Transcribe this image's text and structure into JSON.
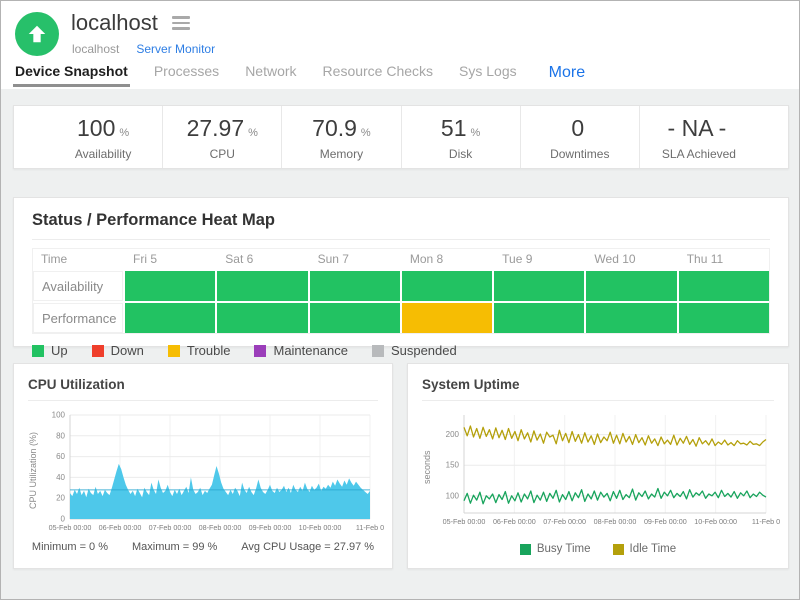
{
  "header": {
    "title": "localhost",
    "breadcrumb": {
      "name": "localhost",
      "type": "Server Monitor"
    }
  },
  "tabs": {
    "items": [
      {
        "label": "Device Snapshot",
        "active": true
      },
      {
        "label": "Processes",
        "active": false
      },
      {
        "label": "Network",
        "active": false
      },
      {
        "label": "Resource Checks",
        "active": false
      },
      {
        "label": "Sys Logs",
        "active": false
      }
    ],
    "more_label": "More"
  },
  "stats": {
    "items": [
      {
        "value": "100",
        "unit": "%",
        "label": "Availability"
      },
      {
        "value": "27.97",
        "unit": "%",
        "label": "CPU"
      },
      {
        "value": "70.9",
        "unit": "%",
        "label": "Memory"
      },
      {
        "value": "51",
        "unit": "%",
        "label": "Disk"
      },
      {
        "value": "0",
        "unit": "",
        "label": "Downtimes"
      },
      {
        "value": "- NA -",
        "unit": "",
        "label": "SLA Achieved"
      }
    ]
  },
  "heatmap": {
    "title": "Status / Performance Heat Map",
    "time_header": "Time",
    "columns": [
      "Fri 5",
      "Sat 6",
      "Sun 7",
      "Mon 8",
      "Tue 9",
      "Wed 10",
      "Thu 11"
    ],
    "rows": [
      {
        "label": "Availability",
        "cells": [
          "up",
          "up",
          "up",
          "up",
          "up",
          "up",
          "up"
        ]
      },
      {
        "label": "Performance",
        "cells": [
          "up",
          "up",
          "up",
          "trouble",
          "up",
          "up",
          "up"
        ]
      }
    ],
    "legend": [
      {
        "label": "Up",
        "key": "up"
      },
      {
        "label": "Down",
        "key": "down"
      },
      {
        "label": "Trouble",
        "key": "trouble"
      },
      {
        "label": "Maintenance",
        "key": "maintenance"
      },
      {
        "label": "Suspended",
        "key": "suspended"
      }
    ],
    "colors": {
      "up": "#22c262",
      "down": "#ef3e2b",
      "trouble": "#f6bd03",
      "maintenance": "#9b3eba",
      "suspended": "#b8babc"
    }
  },
  "chart_data": [
    {
      "id": "cpu",
      "type": "area",
      "title": "CPU Utilization",
      "ylabel": "CPU Utilization (%)",
      "ylim": [
        0,
        100
      ],
      "yticks": [
        0,
        20,
        40,
        60,
        80,
        100
      ],
      "x_labels": [
        "05-Feb 00:00",
        "06-Feb 00:00",
        "07-Feb 00:00",
        "08-Feb 00:00",
        "09-Feb 00:00",
        "10-Feb 00:00",
        "11-Feb 0"
      ],
      "color": "#4ec8ea",
      "avg_line": 27.97,
      "avg_color": "#2ba7cf",
      "grid": true,
      "values": [
        25,
        22,
        28,
        24,
        30,
        23,
        27,
        21,
        29,
        25,
        23,
        31,
        24,
        27,
        22,
        28,
        25,
        23,
        30,
        38,
        46,
        53,
        48,
        40,
        33,
        28,
        24,
        27,
        22,
        29,
        25,
        21,
        30,
        26,
        23,
        35,
        28,
        24,
        38,
        30,
        25,
        27,
        33,
        26,
        22,
        28,
        24,
        29,
        23,
        27,
        31,
        25,
        40,
        28,
        24,
        26,
        30,
        23,
        27,
        25,
        29,
        33,
        42,
        51,
        44,
        35,
        29,
        26,
        23,
        28,
        24,
        30,
        27,
        22,
        35,
        28,
        25,
        31,
        26,
        23,
        29,
        38,
        30,
        26,
        24,
        28,
        33,
        27,
        25,
        30,
        26,
        28,
        32,
        26,
        30,
        25,
        33,
        28,
        26,
        31,
        27,
        35,
        29,
        26,
        32,
        28,
        30,
        34,
        27,
        31,
        29,
        33,
        30,
        36,
        32,
        38,
        34,
        31,
        37,
        33,
        39,
        35,
        32,
        36,
        33,
        30,
        28,
        26,
        24,
        27
      ],
      "footer": [
        "Minimum = 0 %",
        "Maximum = 99 %",
        "Avg CPU Usage = 27.97 %"
      ]
    },
    {
      "id": "uptime",
      "type": "line",
      "title": "System Uptime",
      "ylabel": "seconds",
      "ylim": [
        72,
        232
      ],
      "yticks": [
        100,
        150,
        200
      ],
      "x_labels": [
        "05-Feb 00:00",
        "06-Feb 00:00",
        "07-Feb 00:00",
        "08-Feb 00:00",
        "09-Feb 00:00",
        "10-Feb 00:00",
        "11-Feb 0"
      ],
      "grid": true,
      "legend_position": "bottom",
      "series": [
        {
          "name": "Busy Time",
          "color": "#18a45c",
          "values": [
            92,
            104,
            88,
            101,
            93,
            106,
            87,
            100,
            95,
            103,
            89,
            102,
            94,
            107,
            88,
            100,
            92,
            105,
            90,
            103,
            95,
            108,
            89,
            101,
            93,
            106,
            91,
            104,
            96,
            109,
            90,
            102,
            94,
            107,
            92,
            105,
            97,
            110,
            91,
            103,
            95,
            108,
            93,
            106,
            98,
            104,
            92,
            107,
            96,
            109,
            94,
            102,
            97,
            111,
            93,
            105,
            99,
            108,
            95,
            103,
            98,
            112,
            96,
            106,
            100,
            109,
            97,
            104,
            99,
            107,
            95,
            110,
            98,
            105,
            101,
            108,
            96,
            103,
            100,
            106,
            97,
            109,
            99,
            104,
            98,
            107,
            96,
            105,
            100,
            108,
            97,
            103,
            99,
            106,
            101,
            98
          ]
        },
        {
          "name": "Idle Time",
          "color": "#b4a00b",
          "values": [
            212,
            198,
            214,
            196,
            210,
            194,
            212,
            197,
            208,
            193,
            211,
            195,
            207,
            192,
            210,
            194,
            205,
            190,
            208,
            193,
            203,
            188,
            206,
            191,
            201,
            186,
            204,
            196,
            199,
            185,
            207,
            190,
            202,
            187,
            205,
            189,
            200,
            186,
            203,
            188,
            198,
            184,
            201,
            187,
            196,
            190,
            204,
            186,
            199,
            185,
            202,
            188,
            197,
            184,
            200,
            187,
            195,
            183,
            198,
            186,
            193,
            182,
            196,
            185,
            191,
            184,
            199,
            183,
            194,
            186,
            197,
            184,
            192,
            181,
            195,
            185,
            190,
            183,
            193,
            182,
            188,
            184,
            191,
            183,
            187,
            182,
            190,
            185,
            186,
            183,
            189,
            184,
            185,
            182,
            188,
            192
          ]
        }
      ]
    }
  ]
}
